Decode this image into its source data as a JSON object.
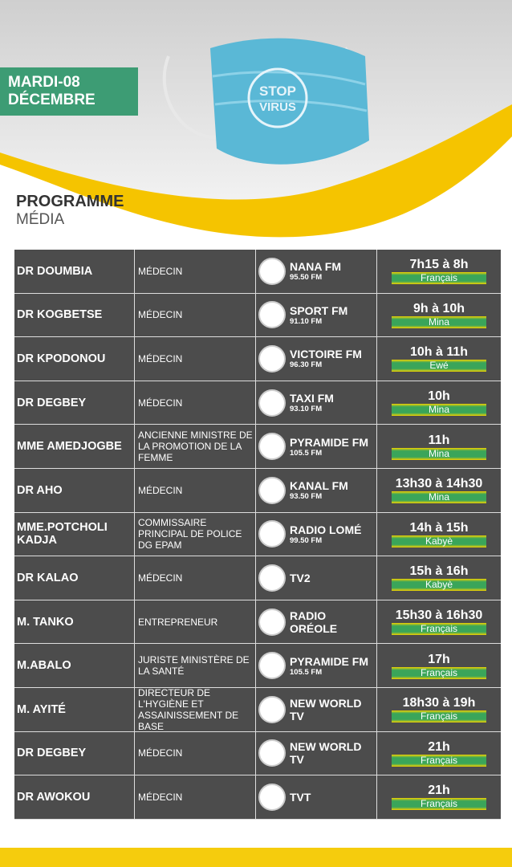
{
  "header": {
    "date_lines": [
      "MARDI-08",
      "DÉCEMBRE"
    ],
    "title": "PROGRAMME",
    "subtitle": "MÉDIA",
    "mask_text": [
      "STOP",
      "VIRUS"
    ]
  },
  "table": {
    "rows": [
      {
        "name": "DR DOUMBIA",
        "role": "MÉDECIN",
        "station": "NANA FM",
        "freq": "95.50 FM",
        "time": "7h15 à 8h",
        "lang": "Français"
      },
      {
        "name": "DR KOGBETSE",
        "role": "MÉDECIN",
        "station": "SPORT FM",
        "freq": "91.10 FM",
        "time": "9h à 10h",
        "lang": "Mina"
      },
      {
        "name": "DR KPODONOU",
        "role": "MÉDECIN",
        "station": "VICTOIRE FM",
        "freq": "96.30 FM",
        "time": "10h à 11h",
        "lang": "Ewé"
      },
      {
        "name": "DR DEGBEY",
        "role": "MÉDECIN",
        "station": "TAXI FM",
        "freq": "93.10 FM",
        "time": "10h",
        "lang": "Mina"
      },
      {
        "name": "MME AMEDJOGBE",
        "role": "ANCIENNE MINISTRE DE LA PROMOTION DE LA FEMME",
        "station": "PYRAMIDE FM",
        "freq": "105.5 FM",
        "time": "11h",
        "lang": "Mina"
      },
      {
        "name": "DR AHO",
        "role": "MÉDECIN",
        "station": "KANAL FM",
        "freq": "93.50 FM",
        "time": "13h30 à 14h30",
        "lang": "Mina"
      },
      {
        "name": "MME.POTCHOLI KADJA",
        "role": "COMMISSAIRE PRINCIPAL DE POLICE DG EPAM",
        "station": "RADIO LOMÉ",
        "freq": "99.50 FM",
        "time": "14h à 15h",
        "lang": "Kabyè"
      },
      {
        "name": "DR KALAO",
        "role": "MÉDECIN",
        "station": "TV2",
        "time": "15h à 16h",
        "lang": "Kabyè"
      },
      {
        "name": "M. TANKO",
        "role": "ENTREPRENEUR",
        "station": "RADIO ORÉOLE",
        "time": "15h30 à 16h30",
        "lang": "Français"
      },
      {
        "name": "M.ABALO",
        "role": "JURISTE MINISTÈRE DE LA SANTÉ",
        "station": "PYRAMIDE FM",
        "freq": "105.5 FM",
        "time": "17h",
        "lang": "Français"
      },
      {
        "name": "M. AYITÉ",
        "role": "DIRECTEUR DE L'HYGIÈNE ET ASSAINISSEMENT DE BASE",
        "station": "NEW WORLD TV",
        "time": "18h30 à 19h",
        "lang": "Français"
      },
      {
        "name": "DR DEGBEY",
        "role": "MÉDECIN",
        "station": "NEW WORLD TV",
        "time": "21h",
        "lang": "Français"
      },
      {
        "name": "DR AWOKOU",
        "role": "MÉDECIN",
        "station": "TVT",
        "time": "21h",
        "lang": "Français"
      }
    ]
  }
}
